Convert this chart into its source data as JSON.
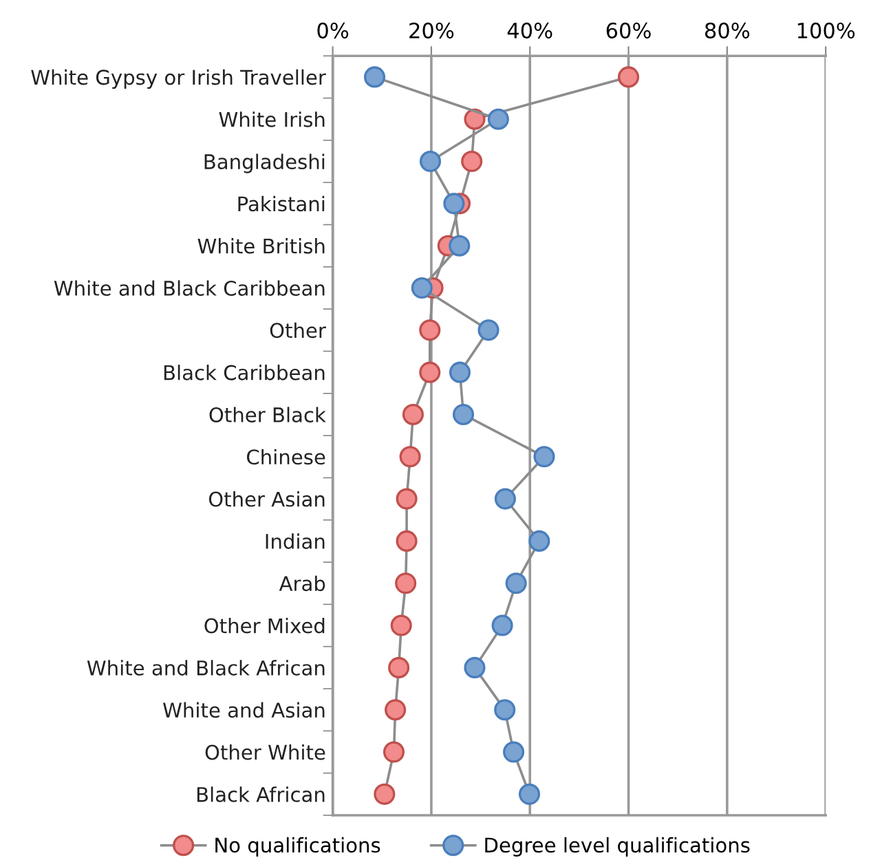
{
  "chart_data": {
    "type": "line",
    "orientation": "horizontal",
    "categories": [
      "White Gypsy or Irish Traveller",
      "White Irish",
      "Bangladeshi",
      "Pakistani",
      "White British",
      "White and Black Caribbean",
      "Other",
      "Black Caribbean",
      "Other Black",
      "Chinese",
      "Other Asian",
      "Indian",
      "Arab",
      "Other Mixed",
      "White and Black African",
      "White and Asian",
      "Other White",
      "Black African"
    ],
    "series": [
      {
        "name": "No qualifications",
        "color": "#f28b8c",
        "values": [
          60,
          28.8,
          28.2,
          25.8,
          23.4,
          20.3,
          19.7,
          19.7,
          16.3,
          15.7,
          15.0,
          15.0,
          14.8,
          13.9,
          13.4,
          12.7,
          12.4,
          10.5
        ]
      },
      {
        "name": "Degree level qualifications",
        "color": "#7aa3d2",
        "values": [
          8.5,
          33.6,
          19.8,
          24.6,
          25.7,
          18.1,
          31.6,
          25.8,
          26.5,
          42.9,
          35.0,
          41.9,
          37.2,
          34.4,
          28.8,
          34.9,
          36.7,
          39.9
        ]
      }
    ],
    "xlim": [
      0,
      100
    ],
    "xticks": [
      {
        "value": 0,
        "label": "0%"
      },
      {
        "value": 20,
        "label": "20%"
      },
      {
        "value": 40,
        "label": "40%"
      },
      {
        "value": 60,
        "label": "60%"
      },
      {
        "value": 80,
        "label": "80%"
      },
      {
        "value": 100,
        "label": "100%"
      }
    ],
    "grid": "x",
    "legend": "bottom",
    "marker": "circle",
    "line_style": "solid"
  }
}
